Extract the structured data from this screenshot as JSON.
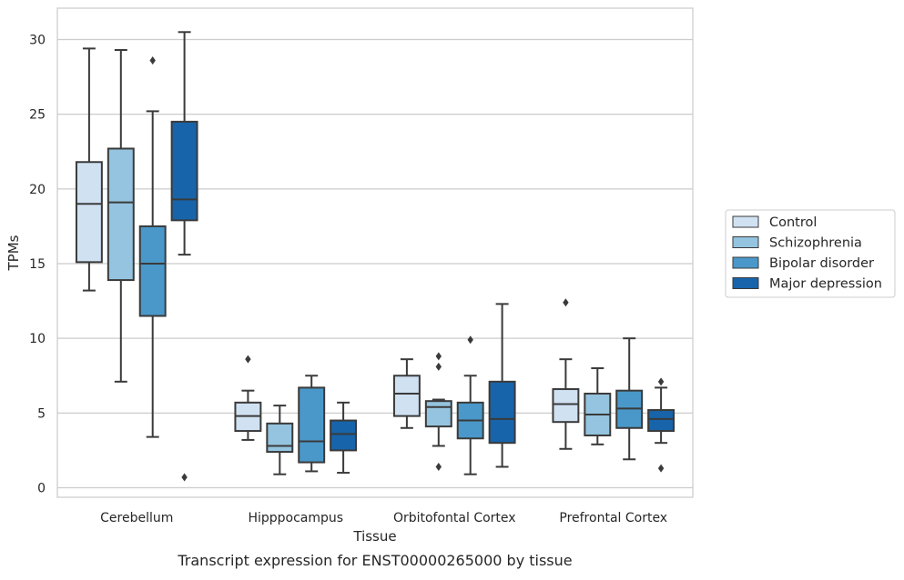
{
  "chart_data": {
    "type": "boxplot",
    "title": "",
    "xlabel": "Tissue",
    "ylabel": "TPMs",
    "caption": "Transcript expression for ENST00000265000 by tissue",
    "ylim": [
      -0.7,
      32
    ],
    "yticks": [
      "0",
      "5",
      "10",
      "15",
      "20",
      "25",
      "30"
    ],
    "grid": "horizontal",
    "legend_position": "right",
    "categories": [
      "Cerebellum",
      "Hipppocampus",
      "Orbitofontal Cortex",
      "Prefrontal Cortex"
    ],
    "series": [
      {
        "name": "Control",
        "color": "#d0e1f2",
        "boxes": [
          {
            "whislo": 13.2,
            "q1": 15.1,
            "med": 19.0,
            "q3": 21.8,
            "whishi": 29.4,
            "fliers": []
          },
          {
            "whislo": 3.2,
            "q1": 3.8,
            "med": 4.8,
            "q3": 5.7,
            "whishi": 6.5,
            "fliers": [
              8.6
            ]
          },
          {
            "whislo": 4.0,
            "q1": 4.8,
            "med": 6.3,
            "q3": 7.5,
            "whishi": 8.6,
            "fliers": []
          },
          {
            "whislo": 2.6,
            "q1": 4.4,
            "med": 5.6,
            "q3": 6.6,
            "whishi": 8.6,
            "fliers": [
              12.4
            ]
          }
        ]
      },
      {
        "name": "Schizophrenia",
        "color": "#94c4df",
        "boxes": [
          {
            "whislo": 7.1,
            "q1": 13.9,
            "med": 19.1,
            "q3": 22.7,
            "whishi": 29.3,
            "fliers": []
          },
          {
            "whislo": 0.9,
            "q1": 2.4,
            "med": 2.8,
            "q3": 4.3,
            "whishi": 5.5,
            "fliers": []
          },
          {
            "whislo": 2.8,
            "q1": 4.1,
            "med": 5.4,
            "q3": 5.8,
            "whishi": 5.9,
            "fliers": [
              8.8,
              8.1,
              1.4
            ]
          },
          {
            "whislo": 2.9,
            "q1": 3.5,
            "med": 4.9,
            "q3": 6.3,
            "whishi": 8.0,
            "fliers": []
          }
        ]
      },
      {
        "name": "Bipolar disorder",
        "color": "#4a98c9",
        "boxes": [
          {
            "whislo": 3.4,
            "q1": 11.5,
            "med": 15.0,
            "q3": 17.5,
            "whishi": 25.2,
            "fliers": [
              28.6
            ]
          },
          {
            "whislo": 1.1,
            "q1": 1.7,
            "med": 3.1,
            "q3": 6.7,
            "whishi": 7.5,
            "fliers": []
          },
          {
            "whislo": 0.9,
            "q1": 3.3,
            "med": 4.5,
            "q3": 5.7,
            "whishi": 7.5,
            "fliers": [
              9.9
            ]
          },
          {
            "whislo": 1.9,
            "q1": 4.0,
            "med": 5.3,
            "q3": 6.5,
            "whishi": 10.0,
            "fliers": []
          }
        ]
      },
      {
        "name": "Major depression",
        "color": "#1764ab",
        "boxes": [
          {
            "whislo": 15.6,
            "q1": 17.9,
            "med": 19.3,
            "q3": 24.5,
            "whishi": 30.5,
            "fliers": [
              0.7
            ]
          },
          {
            "whislo": 1.0,
            "q1": 2.5,
            "med": 3.6,
            "q3": 4.5,
            "whishi": 5.7,
            "fliers": []
          },
          {
            "whislo": 1.4,
            "q1": 3.0,
            "med": 4.6,
            "q3": 7.1,
            "whishi": 12.3,
            "fliers": []
          },
          {
            "whislo": 3.0,
            "q1": 3.8,
            "med": 4.6,
            "q3": 5.2,
            "whishi": 6.7,
            "fliers": [
              7.1,
              1.3
            ]
          }
        ]
      }
    ]
  }
}
